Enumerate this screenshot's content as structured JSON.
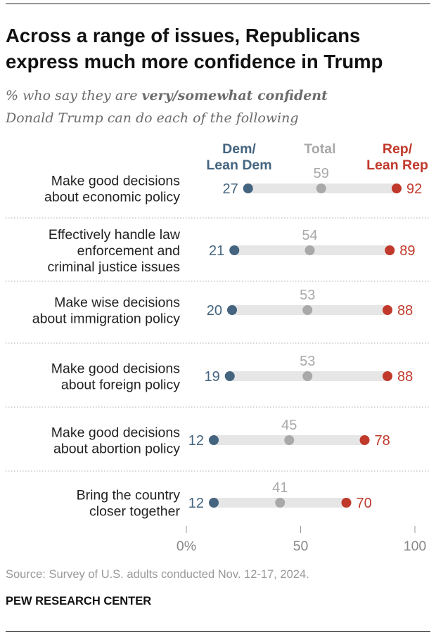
{
  "title": "Across a range of issues, Republicans express much more confidence in Trump",
  "subtitle": {
    "prefix": "% who say they are ",
    "emphasis": "very/somewhat confident",
    "suffix": "Donald Trump can do each of the following"
  },
  "colors": {
    "dem": "#44647f",
    "total": "#a9a9a9",
    "rep": "#c0392b",
    "bar": "#e6e6e6"
  },
  "chart_data": {
    "type": "dot-range",
    "xlim": [
      0,
      100
    ],
    "x_ticks": [
      0,
      50,
      100
    ],
    "x_tick_labels": [
      "0%",
      "50",
      "100"
    ],
    "series": [
      {
        "key": "dem",
        "name_lines": [
          "Dem/",
          "Lean Dem"
        ],
        "values": [
          27,
          21,
          20,
          19,
          12,
          12
        ]
      },
      {
        "key": "total",
        "name_lines": [
          "Total"
        ],
        "values": [
          59,
          54,
          53,
          53,
          45,
          41
        ]
      },
      {
        "key": "rep",
        "name_lines": [
          "Rep/",
          "Lean Rep"
        ],
        "values": [
          92,
          89,
          88,
          88,
          78,
          70
        ]
      }
    ],
    "categories": [
      [
        "Make good decisions",
        "about economic policy"
      ],
      [
        "Effectively handle law",
        "enforcement and",
        "criminal justice issues"
      ],
      [
        "Make wise decisions",
        "about immigration policy"
      ],
      [
        "Make good decisions",
        "about foreign policy"
      ],
      [
        "Make good decisions",
        "about abortion policy"
      ],
      [
        "Bring the country",
        "closer together"
      ]
    ]
  },
  "source": "Source: Survey of U.S. adults conducted Nov. 12-17, 2024.",
  "organization": "PEW RESEARCH CENTER"
}
